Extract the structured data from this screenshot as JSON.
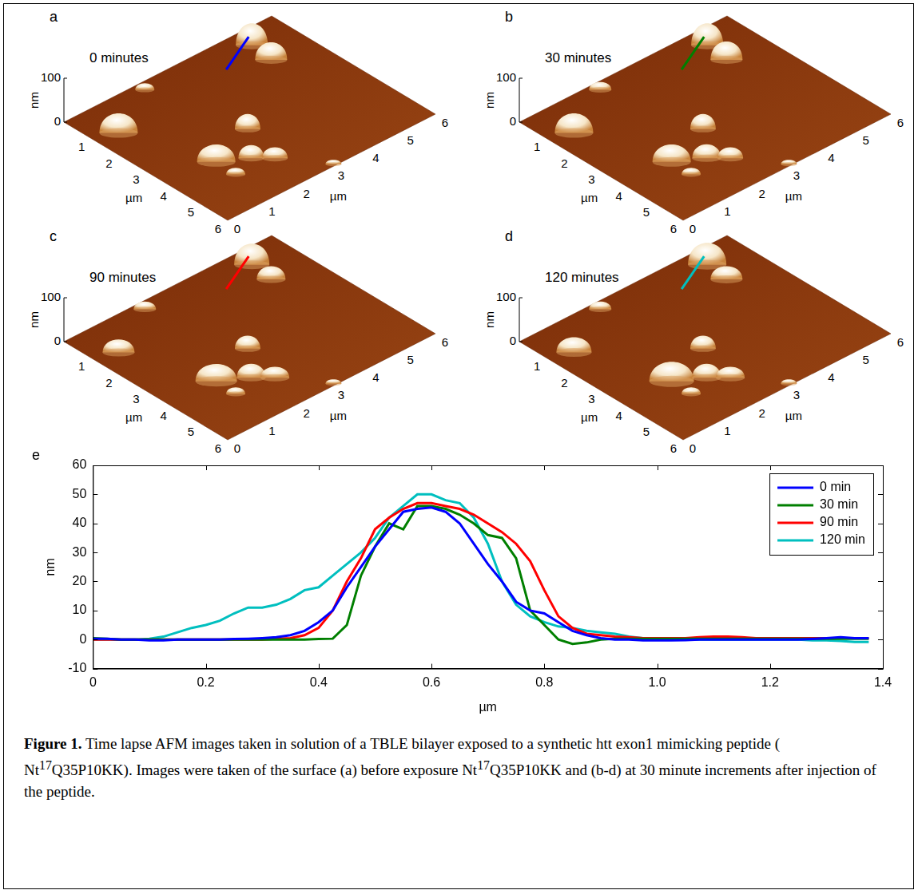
{
  "panel_axes": {
    "xlim": [
      0,
      6
    ],
    "x_ticks": [
      1,
      2,
      3,
      4,
      5,
      6
    ],
    "x_label": "µm",
    "ylim": [
      0,
      6
    ],
    "y_ticks": [
      0,
      1,
      2,
      3,
      4,
      5,
      6
    ],
    "y_label": "µm",
    "zlim": [
      0,
      100
    ],
    "z_ticks": [
      0,
      100
    ],
    "z_label": "nm"
  },
  "panels": [
    {
      "letter": "a",
      "time": "0 minutes",
      "profile": {
        "from": [
          1.0,
          3.9
        ],
        "to": [
          0.3,
          5.1
        ],
        "color": "#0000ff"
      },
      "features": [
        {
          "x": 0.63,
          "y": 4.93,
          "height": 50,
          "width": 0.5
        },
        {
          "x": 1.44,
          "y": 4.85,
          "height": 40,
          "width": 0.5
        },
        {
          "x": 0.3,
          "y": 2.1,
          "height": 15,
          "width": 0.3
        },
        {
          "x": 3.33,
          "y": 2.68,
          "height": 35,
          "width": 0.4
        },
        {
          "x": 1.28,
          "y": 0.57,
          "height": 45,
          "width": 0.6
        },
        {
          "x": 5.93,
          "y": 3.11,
          "height": 10,
          "width": 0.25
        },
        {
          "x": 3.88,
          "y": 1.34,
          "height": 40,
          "width": 0.6
        },
        {
          "x": 4.35,
          "y": 1.98,
          "height": 30,
          "width": 0.4
        },
        {
          "x": 4.75,
          "y": 2.35,
          "height": 25,
          "width": 0.4
        },
        {
          "x": 4.62,
          "y": 1.32,
          "height": 15,
          "width": 0.3
        }
      ]
    },
    {
      "letter": "b",
      "time": "30 minutes",
      "profile": {
        "from": [
          1.0,
          3.9
        ],
        "to": [
          0.3,
          5.1
        ],
        "color": "#007f00"
      },
      "features": [
        {
          "x": 0.63,
          "y": 4.93,
          "height": 50,
          "width": 0.5
        },
        {
          "x": 1.44,
          "y": 4.85,
          "height": 42,
          "width": 0.5
        },
        {
          "x": 0.3,
          "y": 2.1,
          "height": 18,
          "width": 0.35
        },
        {
          "x": 3.33,
          "y": 2.68,
          "height": 35,
          "width": 0.4
        },
        {
          "x": 1.28,
          "y": 0.57,
          "height": 45,
          "width": 0.6
        },
        {
          "x": 5.93,
          "y": 3.11,
          "height": 10,
          "width": 0.25
        },
        {
          "x": 3.88,
          "y": 1.34,
          "height": 40,
          "width": 0.6
        },
        {
          "x": 4.35,
          "y": 1.98,
          "height": 32,
          "width": 0.45
        },
        {
          "x": 4.75,
          "y": 2.35,
          "height": 25,
          "width": 0.4
        },
        {
          "x": 4.62,
          "y": 1.32,
          "height": 15,
          "width": 0.3
        }
      ]
    },
    {
      "letter": "c",
      "time": "90 minutes",
      "profile": {
        "from": [
          1.0,
          3.9
        ],
        "to": [
          0.3,
          5.1
        ],
        "color": "#ff0000"
      },
      "features": [
        {
          "x": 0.63,
          "y": 4.93,
          "height": 48,
          "width": 0.55
        },
        {
          "x": 1.44,
          "y": 4.85,
          "height": 30,
          "width": 0.45
        },
        {
          "x": 0.3,
          "y": 2.1,
          "height": 18,
          "width": 0.35
        },
        {
          "x": 3.33,
          "y": 2.68,
          "height": 30,
          "width": 0.4
        },
        {
          "x": 1.28,
          "y": 0.57,
          "height": 30,
          "width": 0.5
        },
        {
          "x": 5.93,
          "y": 3.11,
          "height": 10,
          "width": 0.25
        },
        {
          "x": 3.88,
          "y": 1.34,
          "height": 40,
          "width": 0.65
        },
        {
          "x": 4.35,
          "y": 1.98,
          "height": 32,
          "width": 0.45
        },
        {
          "x": 4.75,
          "y": 2.35,
          "height": 25,
          "width": 0.45
        },
        {
          "x": 4.62,
          "y": 1.32,
          "height": 15,
          "width": 0.3
        }
      ]
    },
    {
      "letter": "d",
      "time": "120 minutes",
      "profile": {
        "from": [
          1.0,
          3.9
        ],
        "to": [
          0.3,
          5.1
        ],
        "color": "#00bfbf"
      },
      "features": [
        {
          "x": 0.63,
          "y": 4.93,
          "height": 50,
          "width": 0.6
        },
        {
          "x": 1.44,
          "y": 4.85,
          "height": 30,
          "width": 0.5
        },
        {
          "x": 0.3,
          "y": 2.1,
          "height": 18,
          "width": 0.35
        },
        {
          "x": 3.33,
          "y": 2.68,
          "height": 30,
          "width": 0.4
        },
        {
          "x": 1.28,
          "y": 0.57,
          "height": 35,
          "width": 0.55
        },
        {
          "x": 5.93,
          "y": 3.11,
          "height": 10,
          "width": 0.25
        },
        {
          "x": 3.88,
          "y": 1.34,
          "height": 45,
          "width": 0.7
        },
        {
          "x": 4.35,
          "y": 1.98,
          "height": 32,
          "width": 0.45
        },
        {
          "x": 4.75,
          "y": 2.35,
          "height": 25,
          "width": 0.45
        },
        {
          "x": 4.62,
          "y": 1.32,
          "height": 15,
          "width": 0.3
        }
      ]
    }
  ],
  "chart_data": {
    "letter": "e",
    "type": "line",
    "x_label": "µm",
    "y_label": "nm",
    "xlim": [
      0,
      1.4
    ],
    "xticks": [
      0,
      0.2,
      0.4,
      0.6,
      0.8,
      {
        "value": 1,
        "label": "1.0"
      },
      1.2,
      1.4
    ],
    "ylim": [
      -10,
      60
    ],
    "yticks": [
      -10,
      0,
      10,
      20,
      30,
      40,
      50,
      60
    ],
    "grid": false,
    "legend": "upper right",
    "x": [
      0,
      0.025,
      0.05,
      0.075,
      0.1,
      0.125,
      0.15,
      0.175,
      0.2,
      0.225,
      0.25,
      0.275,
      0.3,
      0.325,
      0.35,
      0.375,
      0.4,
      0.425,
      0.45,
      0.475,
      0.5,
      0.525,
      0.55,
      0.575,
      0.6,
      0.625,
      0.65,
      0.675,
      0.7,
      0.725,
      0.75,
      0.775,
      0.8,
      0.825,
      0.85,
      0.875,
      0.9,
      0.925,
      0.95,
      0.975,
      1.0,
      1.025,
      1.05,
      1.075,
      1.1,
      1.125,
      1.15,
      1.175,
      1.2,
      1.225,
      1.25,
      1.275,
      1.3,
      1.325,
      1.35,
      1.375
    ],
    "series": [
      {
        "name": "0 min",
        "color": "#0000ff",
        "values": [
          0.3,
          0.3,
          0,
          0,
          -0.3,
          -0.3,
          0,
          0,
          0,
          0,
          0.2,
          0.3,
          0.5,
          0.8,
          1.5,
          3,
          6,
          10,
          18,
          25,
          32,
          38,
          44,
          45,
          45.5,
          44,
          40,
          33,
          26,
          20,
          13,
          10,
          9,
          6,
          3,
          1.5,
          0.5,
          0,
          0,
          -0.3,
          -0.3,
          -0.3,
          -0.2,
          0,
          0,
          0,
          0,
          0,
          0,
          0,
          0,
          0.2,
          0.5,
          0.8,
          0.5,
          0.5
        ]
      },
      {
        "name": "30 min",
        "color": "#007f00",
        "values": [
          0.5,
          0.3,
          0,
          0,
          0,
          0,
          0,
          0,
          0,
          0,
          0,
          0,
          0,
          0,
          0,
          0,
          0.2,
          0.3,
          5,
          22,
          32,
          40,
          38,
          46,
          46,
          45,
          43,
          40,
          36,
          35,
          28,
          10,
          5,
          0,
          -1.5,
          -1,
          0,
          0.3,
          0.3,
          0.3,
          0.3,
          0.3,
          0.3,
          0.3,
          0.3,
          0.3,
          0.3,
          0.3,
          0.3,
          0.3,
          0.3,
          0.3,
          0.3,
          0.3,
          0.3,
          0.3
        ]
      },
      {
        "name": "90 min",
        "color": "#ff0000",
        "values": [
          0,
          0,
          0,
          0,
          0,
          0,
          0,
          0,
          0,
          0,
          0,
          0,
          0,
          0.3,
          0.5,
          1.5,
          4,
          10,
          20,
          28,
          38,
          42,
          45,
          47,
          47,
          46,
          45,
          43,
          40,
          37,
          33,
          27,
          17,
          8,
          4,
          2,
          1.5,
          1,
          0.8,
          0.5,
          0.5,
          0.5,
          0.5,
          0.8,
          1,
          1,
          0.8,
          0.5,
          0.5,
          0.5,
          0.5,
          0.5,
          0.5,
          0.5,
          0.5,
          0.5
        ]
      },
      {
        "name": "120 min",
        "color": "#00bfbf",
        "values": [
          0,
          0,
          0,
          0,
          0.3,
          1,
          2.5,
          4,
          5,
          6.5,
          9,
          11,
          11,
          12,
          14,
          17,
          18,
          22,
          26,
          30,
          35,
          42,
          46,
          50,
          50,
          48,
          47,
          42,
          33,
          20,
          12,
          8,
          6,
          4.5,
          4,
          3,
          2.5,
          2,
          1,
          0.5,
          0,
          0,
          0,
          0,
          0,
          0,
          0,
          0,
          0,
          0,
          0,
          -0.3,
          -0.3,
          -0.5,
          -0.8,
          -0.8
        ]
      }
    ]
  },
  "caption": {
    "label": "Figure 1.",
    "runs": [
      {
        "text": " Time lapse AFM images taken in solution of a TBLE bilayer exposed to a synthetic htt exon1 mimicking peptide ( Nt"
      },
      {
        "text": "17",
        "sup": true
      },
      {
        "text": "Q35P10KK). Images were taken of the surface (a) before exposure  Nt"
      },
      {
        "text": "17",
        "sup": true
      },
      {
        "text": "Q35P10KK and (b-d) at 30 minute increments after injection of the peptide."
      }
    ]
  }
}
